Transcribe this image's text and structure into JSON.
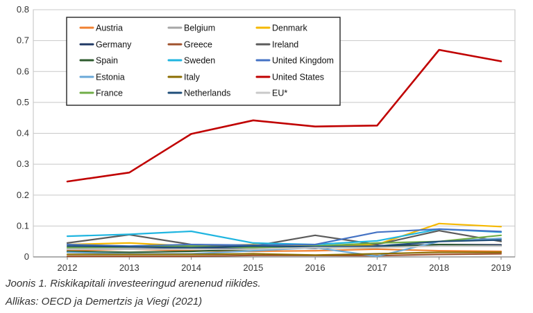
{
  "chart_data": {
    "type": "line",
    "title": "",
    "xlabel": "",
    "ylabel": "",
    "x": [
      "2012",
      "2013",
      "2014",
      "2015",
      "2016",
      "2017",
      "2018",
      "2019"
    ],
    "ylim": [
      0,
      0.8
    ],
    "yticks": [
      "0",
      "0.1",
      "0.2",
      "0.3",
      "0.4",
      "0.5",
      "0.6",
      "0.7",
      "0.8"
    ],
    "grid": true,
    "legend_position": "top-left",
    "series": [
      {
        "name": "Austria",
        "color": "#f08030",
        "values": [
          0.02,
          0.025,
          0.02,
          0.018,
          0.02,
          0.025,
          0.02,
          0.018
        ]
      },
      {
        "name": "Belgium",
        "color": "#a6a6a6",
        "values": [
          0.03,
          0.03,
          0.028,
          0.025,
          0.03,
          0.035,
          0.04,
          0.04
        ]
      },
      {
        "name": "Denmark",
        "color": "#f5b800",
        "values": [
          0.04,
          0.045,
          0.035,
          0.04,
          0.035,
          0.04,
          0.108,
          0.098
        ]
      },
      {
        "name": "Germany",
        "color": "#1f3864",
        "values": [
          0.025,
          0.025,
          0.028,
          0.03,
          0.028,
          0.035,
          0.04,
          0.038
        ]
      },
      {
        "name": "Greece",
        "color": "#a0522d",
        "values": [
          0.002,
          0.002,
          0.002,
          0.005,
          0.005,
          0.004,
          0.008,
          0.01
        ]
      },
      {
        "name": "Ireland",
        "color": "#5b5b5b",
        "values": [
          0.045,
          0.072,
          0.04,
          0.035,
          0.07,
          0.04,
          0.085,
          0.05
        ]
      },
      {
        "name": "Spain",
        "color": "#2e5b2e",
        "values": [
          0.018,
          0.015,
          0.018,
          0.025,
          0.03,
          0.03,
          0.04,
          0.035
        ]
      },
      {
        "name": "Sweden",
        "color": "#1fb5e0",
        "values": [
          0.067,
          0.073,
          0.083,
          0.045,
          0.04,
          0.052,
          0.09,
          0.08
        ]
      },
      {
        "name": "United Kingdom",
        "color": "#4472c4",
        "values": [
          0.04,
          0.035,
          0.04,
          0.038,
          0.04,
          0.08,
          0.09,
          0.082
        ]
      },
      {
        "name": "Estonia",
        "color": "#6aa8d8",
        "values": [
          0.015,
          0.01,
          0.01,
          0.02,
          0.03,
          0.002,
          0.05,
          0.06
        ]
      },
      {
        "name": "Italy",
        "color": "#8b6d00",
        "values": [
          0.008,
          0.008,
          0.008,
          0.01,
          0.006,
          0.01,
          0.015,
          0.015
        ]
      },
      {
        "name": "United States",
        "color": "#c00000",
        "values": [
          0.244,
          0.273,
          0.398,
          0.442,
          0.422,
          0.425,
          0.67,
          0.633
        ]
      },
      {
        "name": "France",
        "color": "#70ad47",
        "values": [
          0.03,
          0.032,
          0.035,
          0.03,
          0.035,
          0.045,
          0.05,
          0.07
        ]
      },
      {
        "name": "Netherlands",
        "color": "#1f4e79",
        "values": [
          0.035,
          0.033,
          0.03,
          0.035,
          0.033,
          0.035,
          0.05,
          0.055
        ]
      },
      {
        "name": "EU*",
        "color": "#c9c9c9",
        "values": [
          0.025,
          0.025,
          0.025,
          0.025,
          0.03,
          0.03,
          0.035,
          0.035
        ]
      }
    ]
  },
  "caption": {
    "line1": "Joonis 1. Riskikapitali investeeringud arenenud riikides.",
    "line2": "Allikas: OECD ja Demertzis ja Viegi (2021)"
  }
}
